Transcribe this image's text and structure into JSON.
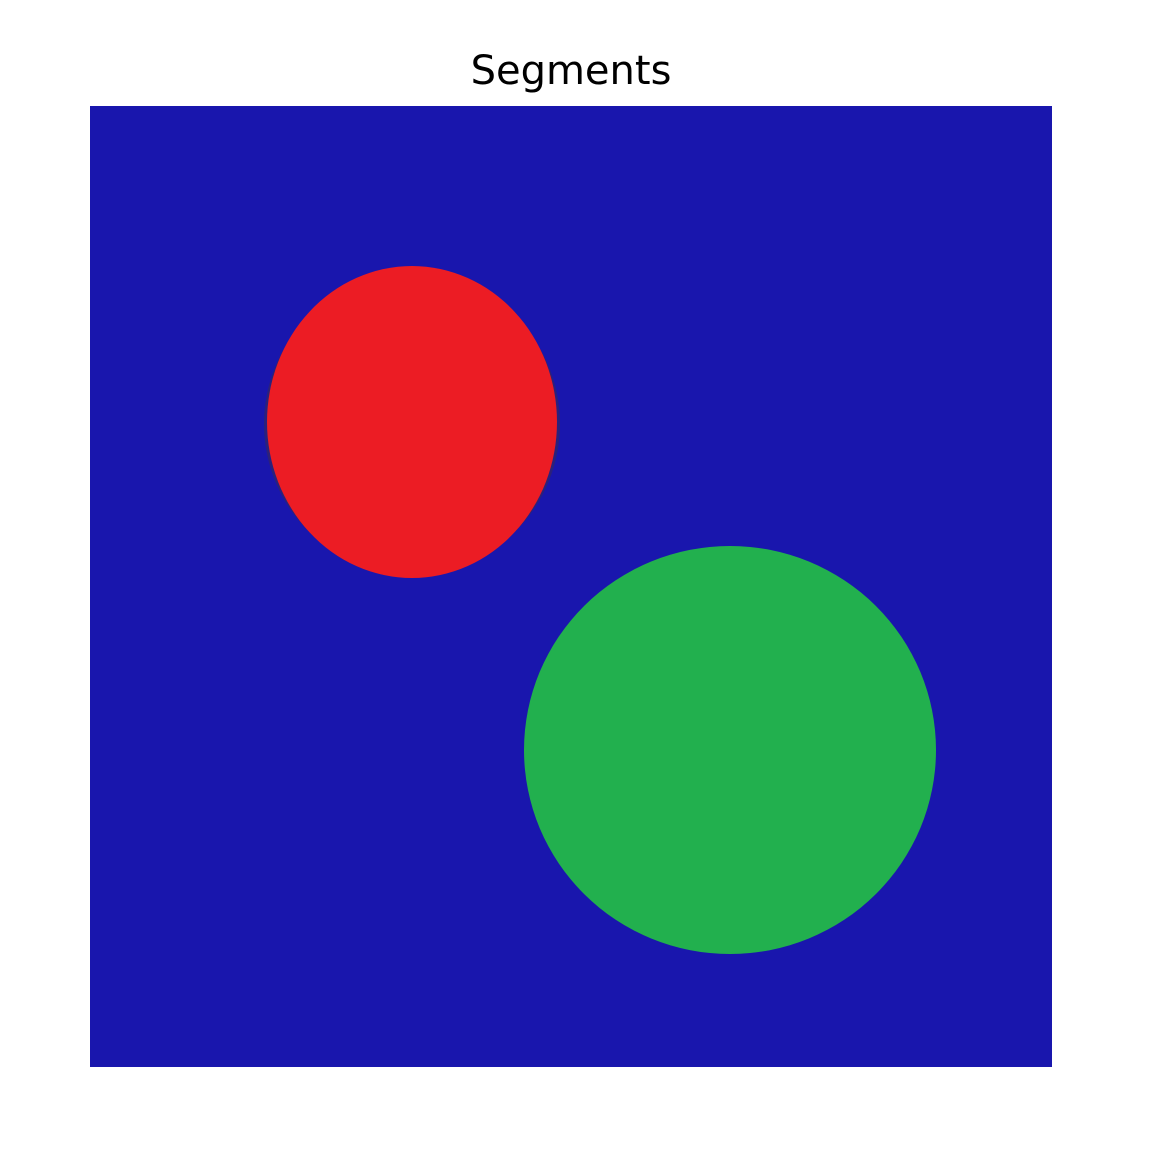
{
  "figure": {
    "title": "Segments"
  },
  "colors": {
    "background_segment": "#1916ad",
    "segment_red": "#ec1c24",
    "segment_green": "#22b04e"
  },
  "segments": [
    {
      "name": "background",
      "color": "#1916ad"
    },
    {
      "name": "red-circle",
      "color": "#ec1c24"
    },
    {
      "name": "green-circle",
      "color": "#22b04e"
    }
  ]
}
